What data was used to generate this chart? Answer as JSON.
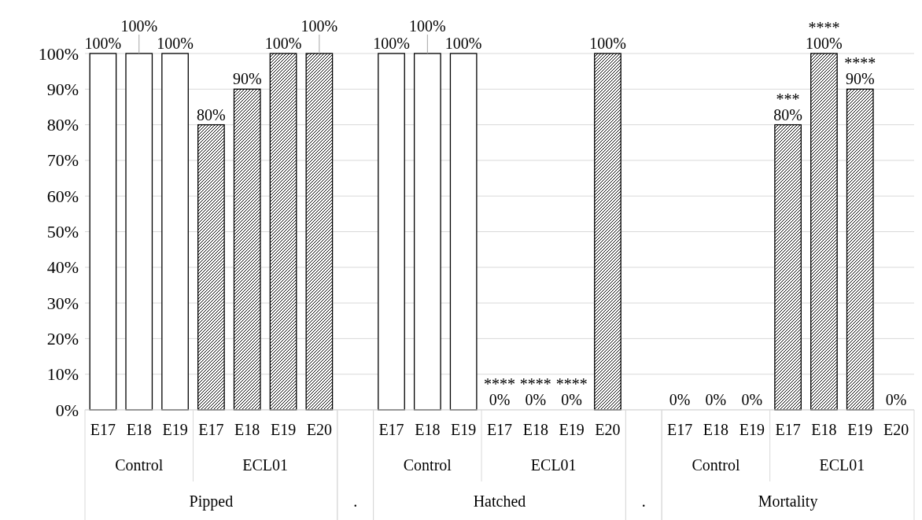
{
  "chart_data": {
    "type": "bar",
    "categories": [
      "E17",
      "E18",
      "E19",
      "E17",
      "E18",
      "E19",
      "E20",
      null,
      "E17",
      "E18",
      "E19",
      "E17",
      "E18",
      "E19",
      "E20",
      null,
      "E17",
      "E18",
      "E19",
      "E17",
      "E18",
      "E19",
      "E20"
    ],
    "values": [
      100,
      100,
      100,
      80,
      90,
      100,
      100,
      null,
      100,
      100,
      100,
      0,
      0,
      0,
      100,
      null,
      0,
      0,
      0,
      80,
      100,
      90,
      0
    ],
    "colors": [
      "#ffffff",
      "#ffffff",
      "#ffffff",
      "#000000",
      "#000000",
      "#000000",
      "#000000",
      null,
      "#ffffff",
      "#ffffff",
      "#ffffff",
      "#000000",
      "#000000",
      "#000000",
      "#000000",
      null,
      "#ffffff",
      "#ffffff",
      "#ffffff",
      "#000000",
      "#000000",
      "#000000",
      "#000000"
    ],
    "value_labels": [
      "100%",
      "100%",
      "100%",
      "80%",
      "90%",
      "100%",
      "100%",
      null,
      "100%",
      "100%",
      "100%",
      "****\n0%",
      "****\n0%",
      "****\n0%",
      "100%",
      null,
      "0%",
      "0%",
      "0%",
      "***\n80%",
      "****\n100%",
      "****\n90%",
      "0%"
    ],
    "annotations": [
      "Control",
      "ECL01",
      "Pipped",
      ".",
      "Control",
      "ECL01",
      "Hatched",
      ".",
      "Control",
      "ECL01",
      "Mortality"
    ],
    "ylim": [
      0,
      100
    ],
    "yticks": [
      {
        "value": 0,
        "label": "0%"
      },
      {
        "value": 10,
        "label": "10%"
      },
      {
        "value": 20,
        "label": "20%"
      },
      {
        "value": 30,
        "label": "30%"
      },
      {
        "value": 40,
        "label": "40%"
      },
      {
        "value": 50,
        "label": "50%"
      },
      {
        "value": 60,
        "label": "60%"
      },
      {
        "value": 70,
        "label": "70%"
      },
      {
        "value": 80,
        "label": "80%"
      },
      {
        "value": 90,
        "label": "90%"
      },
      {
        "value": 100,
        "label": "100%"
      }
    ],
    "grid": "y"
  }
}
